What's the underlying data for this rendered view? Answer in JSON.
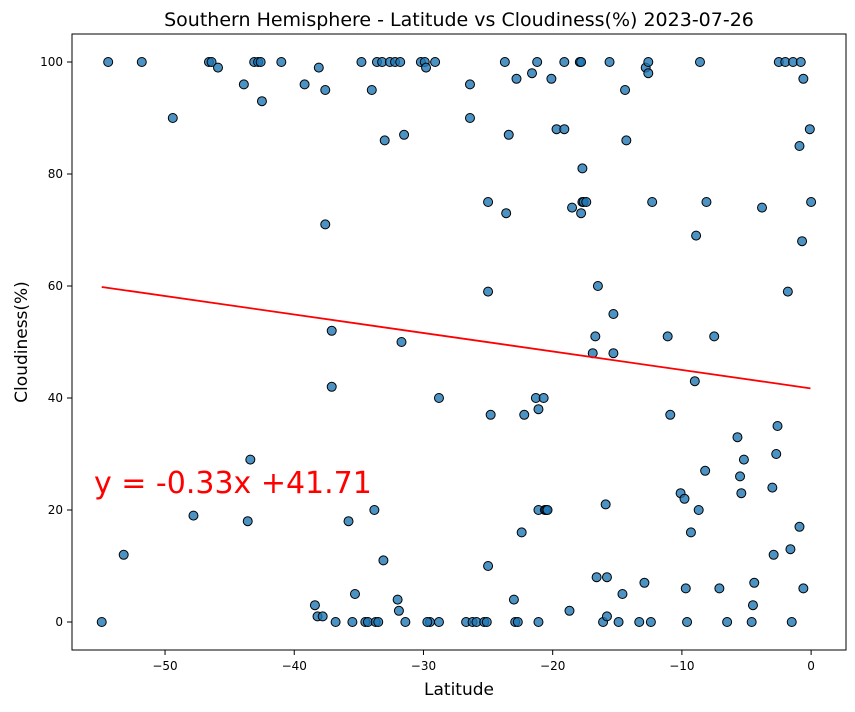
{
  "chart_data": {
    "type": "scatter",
    "title": "Southern Hemisphere - Latitude vs Cloudiness(%) 2023-07-26",
    "xlabel": "Latitude",
    "ylabel": "Cloudiness(%)",
    "xlim": [
      -57.2,
      2.7
    ],
    "ylim": [
      -5,
      105
    ],
    "xticks": [
      -50,
      -40,
      -30,
      -20,
      -10,
      0
    ],
    "xtick_labels": [
      "−50",
      "−40",
      "−30",
      "−20",
      "−10",
      "0"
    ],
    "yticks": [
      0,
      20,
      40,
      60,
      80,
      100
    ],
    "ytick_labels": [
      "0",
      "20",
      "40",
      "60",
      "80",
      "100"
    ],
    "grid": false,
    "colors": {
      "points": "#1f77b4",
      "edge": "#000000",
      "regression": "#ff0000",
      "equation": "#ff0000"
    },
    "regression": {
      "slope": -0.33,
      "intercept": 41.71,
      "x_range": [
        -54.9,
        -0.05
      ],
      "label": "y = -0.33x +41.71"
    },
    "points": [
      [
        -54.9,
        0
      ],
      [
        -54.4,
        100
      ],
      [
        -53.2,
        12
      ],
      [
        -51.8,
        100
      ],
      [
        -49.4,
        90
      ],
      [
        -47.8,
        19
      ],
      [
        -46.6,
        100
      ],
      [
        -46.4,
        100
      ],
      [
        -45.9,
        99
      ],
      [
        -43.9,
        96
      ],
      [
        -43.4,
        29
      ],
      [
        -43.6,
        18
      ],
      [
        -43.1,
        100
      ],
      [
        -42.8,
        100
      ],
      [
        -42.6,
        100
      ],
      [
        -42.5,
        93
      ],
      [
        -41,
        100
      ],
      [
        -39.2,
        96
      ],
      [
        -38.4,
        3
      ],
      [
        -38.2,
        1
      ],
      [
        -38.1,
        99
      ],
      [
        -37.8,
        1
      ],
      [
        -37.6,
        95
      ],
      [
        -37.6,
        71
      ],
      [
        -37.1,
        52
      ],
      [
        -37.1,
        42
      ],
      [
        -36.8,
        0
      ],
      [
        -35.8,
        18
      ],
      [
        -35.5,
        0
      ],
      [
        -35.3,
        5
      ],
      [
        -34.8,
        100
      ],
      [
        -34.5,
        0
      ],
      [
        -34.3,
        0
      ],
      [
        -34,
        95
      ],
      [
        -33.8,
        20
      ],
      [
        -33.7,
        0
      ],
      [
        -33.6,
        100
      ],
      [
        -33.5,
        0
      ],
      [
        -33.2,
        100
      ],
      [
        -33.1,
        11
      ],
      [
        -33,
        86
      ],
      [
        -32.6,
        100
      ],
      [
        -32.2,
        100
      ],
      [
        -32,
        4
      ],
      [
        -31.9,
        2
      ],
      [
        -31.8,
        100
      ],
      [
        -31.7,
        50
      ],
      [
        -31.5,
        87
      ],
      [
        -31.4,
        0
      ],
      [
        -30.2,
        100
      ],
      [
        -29.9,
        100
      ],
      [
        -29.8,
        99
      ],
      [
        -29.5,
        0
      ],
      [
        -29.7,
        0
      ],
      [
        -29.1,
        100
      ],
      [
        -28.8,
        40
      ],
      [
        -28.8,
        0
      ],
      [
        -26.7,
        0
      ],
      [
        -26.4,
        96
      ],
      [
        -26.4,
        90
      ],
      [
        -26.2,
        0
      ],
      [
        -25.9,
        0
      ],
      [
        -25.3,
        0
      ],
      [
        -25,
        75
      ],
      [
        -25,
        59
      ],
      [
        -25,
        10
      ],
      [
        -25.1,
        0
      ],
      [
        -24.8,
        37
      ],
      [
        -23.7,
        100
      ],
      [
        -23.6,
        73
      ],
      [
        -23.4,
        87
      ],
      [
        -23,
        4
      ],
      [
        -22.9,
        0
      ],
      [
        -22.8,
        97
      ],
      [
        -22.7,
        0
      ],
      [
        -22.4,
        16
      ],
      [
        -22.2,
        37
      ],
      [
        -21.6,
        98
      ],
      [
        -21.3,
        40
      ],
      [
        -21.2,
        100
      ],
      [
        -21.1,
        38
      ],
      [
        -21.1,
        20
      ],
      [
        -21.1,
        0
      ],
      [
        -20.7,
        40
      ],
      [
        -20.6,
        20
      ],
      [
        -20.5,
        20
      ],
      [
        -20.4,
        20
      ],
      [
        -20.1,
        97
      ],
      [
        -19.7,
        88
      ],
      [
        -19.1,
        88
      ],
      [
        -19.1,
        100
      ],
      [
        -18.7,
        2
      ],
      [
        -18.5,
        74
      ],
      [
        -17.9,
        100
      ],
      [
        -17.8,
        100
      ],
      [
        -17.8,
        73
      ],
      [
        -17.7,
        81
      ],
      [
        -17.7,
        75
      ],
      [
        -17.6,
        75
      ],
      [
        -17.4,
        75
      ],
      [
        -16.9,
        48
      ],
      [
        -16.7,
        51
      ],
      [
        -16.6,
        8
      ],
      [
        -16.5,
        60
      ],
      [
        -16.1,
        0
      ],
      [
        -15.9,
        21
      ],
      [
        -15.8,
        1
      ],
      [
        -15.8,
        8
      ],
      [
        -15.6,
        100
      ],
      [
        -15.3,
        55
      ],
      [
        -15.3,
        48
      ],
      [
        -14.9,
        0
      ],
      [
        -14.6,
        5
      ],
      [
        -14.4,
        95
      ],
      [
        -14.3,
        86
      ],
      [
        -13.3,
        0
      ],
      [
        -12.9,
        7
      ],
      [
        -12.8,
        99
      ],
      [
        -12.6,
        98
      ],
      [
        -12.6,
        100
      ],
      [
        -12.4,
        0
      ],
      [
        -12.3,
        75
      ],
      [
        -11.1,
        51
      ],
      [
        -10.9,
        37
      ],
      [
        -10.1,
        23
      ],
      [
        -9.8,
        22
      ],
      [
        -9.7,
        6
      ],
      [
        -9.6,
        0
      ],
      [
        -9.3,
        16
      ],
      [
        -9,
        43
      ],
      [
        -8.9,
        69
      ],
      [
        -8.7,
        20
      ],
      [
        -8.6,
        100
      ],
      [
        -8.2,
        27
      ],
      [
        -8.1,
        75
      ],
      [
        -7.5,
        51
      ],
      [
        -7.1,
        6
      ],
      [
        -6.5,
        0
      ],
      [
        -5.7,
        33
      ],
      [
        -5.5,
        26
      ],
      [
        -5.4,
        23
      ],
      [
        -5.2,
        29
      ],
      [
        -4.6,
        0
      ],
      [
        -4.5,
        3
      ],
      [
        -4.4,
        7
      ],
      [
        -3.8,
        74
      ],
      [
        -3,
        24
      ],
      [
        -2.9,
        12
      ],
      [
        -2.7,
        30
      ],
      [
        -2.6,
        35
      ],
      [
        -2.5,
        100
      ],
      [
        -2,
        100
      ],
      [
        -1.8,
        59
      ],
      [
        -1.6,
        13
      ],
      [
        -1.5,
        0
      ],
      [
        -1.4,
        100
      ],
      [
        -0.9,
        85
      ],
      [
        -0.9,
        17
      ],
      [
        -0.8,
        100
      ],
      [
        -0.7,
        68
      ],
      [
        -0.6,
        97
      ],
      [
        -0.6,
        6
      ],
      [
        -0.1,
        88
      ],
      [
        0,
        75
      ]
    ]
  }
}
